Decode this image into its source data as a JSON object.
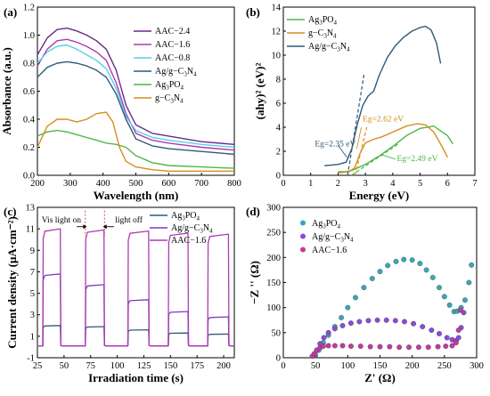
{
  "chart_data": [
    {
      "panel": "(a)",
      "type": "line",
      "xlabel": "Wavelength (nm)",
      "ylabel": "Absorbance (a.u.)",
      "xlim": [
        200,
        800
      ],
      "ylim": [
        0,
        1.2
      ],
      "xticks": [
        200,
        300,
        400,
        500,
        600,
        700,
        800
      ],
      "yticks": [
        0.0,
        0.2,
        0.4,
        0.6,
        0.8,
        1.0,
        1.2
      ],
      "legend_position": "top-right",
      "series": [
        {
          "name": "AAC−2.4",
          "color": "#6a2a8e",
          "x": [
            200,
            230,
            260,
            290,
            320,
            350,
            380,
            410,
            440,
            470,
            500,
            550,
            600,
            700,
            800
          ],
          "y": [
            0.86,
            0.98,
            1.04,
            1.05,
            1.03,
            1.0,
            0.96,
            0.9,
            0.75,
            0.5,
            0.36,
            0.3,
            0.28,
            0.24,
            0.22
          ]
        },
        {
          "name": "AAC−1.6",
          "color": "#b03ab0",
          "x": [
            200,
            230,
            260,
            290,
            320,
            350,
            380,
            410,
            440,
            470,
            500,
            550,
            600,
            700,
            800
          ],
          "y": [
            0.78,
            0.9,
            0.96,
            0.97,
            0.95,
            0.92,
            0.88,
            0.82,
            0.66,
            0.44,
            0.3,
            0.25,
            0.23,
            0.2,
            0.18
          ]
        },
        {
          "name": "AAC−0.8",
          "color": "#55d0e8",
          "x": [
            200,
            230,
            260,
            290,
            320,
            350,
            380,
            410,
            440,
            470,
            500,
            550,
            600,
            700,
            800
          ],
          "y": [
            0.8,
            0.88,
            0.92,
            0.93,
            0.9,
            0.86,
            0.82,
            0.76,
            0.62,
            0.42,
            0.32,
            0.27,
            0.25,
            0.22,
            0.2
          ]
        },
        {
          "name": "Ag/g−C3N4",
          "color": "#2f5a78",
          "x": [
            200,
            230,
            260,
            290,
            320,
            350,
            380,
            410,
            440,
            470,
            500,
            550,
            600,
            700,
            800
          ],
          "y": [
            0.7,
            0.77,
            0.8,
            0.81,
            0.8,
            0.78,
            0.75,
            0.7,
            0.58,
            0.4,
            0.26,
            0.21,
            0.19,
            0.17,
            0.15
          ]
        },
        {
          "name": "Ag3PO4",
          "color": "#4ab84a",
          "x": [
            200,
            230,
            260,
            290,
            320,
            350,
            380,
            410,
            440,
            470,
            500,
            550,
            600,
            700,
            800
          ],
          "y": [
            0.28,
            0.31,
            0.32,
            0.31,
            0.29,
            0.27,
            0.25,
            0.23,
            0.22,
            0.2,
            0.14,
            0.09,
            0.07,
            0.06,
            0.05
          ]
        },
        {
          "name": "g−C3N4",
          "color": "#d98c1e",
          "x": [
            200,
            230,
            260,
            290,
            320,
            350,
            380,
            410,
            430,
            450,
            470,
            500,
            550,
            600,
            700,
            800
          ],
          "y": [
            0.2,
            0.35,
            0.4,
            0.4,
            0.38,
            0.4,
            0.44,
            0.45,
            0.38,
            0.2,
            0.1,
            0.06,
            0.04,
            0.03,
            0.03,
            0.03
          ]
        }
      ]
    },
    {
      "panel": "(b)",
      "type": "line",
      "xlabel": "Energy (eV)",
      "ylabel": "(ahy)² (eV)²",
      "xlim": [
        0,
        7
      ],
      "ylim": [
        0,
        14
      ],
      "xticks": [
        0,
        1,
        2,
        3,
        4,
        5,
        6,
        7
      ],
      "yticks": [
        0,
        2,
        4,
        6,
        8,
        10,
        12,
        14
      ],
      "legend_position": "top-left",
      "series": [
        {
          "name": "Ag3PO4",
          "color": "#4ab84a",
          "x": [
            2.0,
            2.3,
            2.5,
            2.7,
            3.0,
            3.5,
            4.0,
            4.5,
            5.0,
            5.5,
            6.0,
            6.2
          ],
          "y": [
            0.3,
            0.3,
            0.4,
            0.6,
            0.9,
            1.6,
            2.4,
            3.3,
            3.9,
            4.1,
            3.3,
            2.6
          ]
        },
        {
          "name": "g−C3N4",
          "color": "#d98c1e",
          "x": [
            2.0,
            2.4,
            2.6,
            2.8,
            3.0,
            3.3,
            3.6,
            4.0,
            4.5,
            4.9,
            5.2,
            5.5,
            5.8,
            6.0
          ],
          "y": [
            0.2,
            0.3,
            0.6,
            1.8,
            2.7,
            3.0,
            3.2,
            3.6,
            4.1,
            4.3,
            4.2,
            3.6,
            2.4,
            1.5
          ]
        },
        {
          "name": "Ag/g−C3N4",
          "color": "#2f5a78",
          "x": [
            1.5,
            2.0,
            2.3,
            2.5,
            2.7,
            2.9,
            3.1,
            3.3,
            3.5,
            3.8,
            4.1,
            4.4,
            4.7,
            5.0,
            5.2,
            5.4,
            5.6,
            5.75
          ],
          "y": [
            0.8,
            0.9,
            1.1,
            2.2,
            4.2,
            5.8,
            6.6,
            7.0,
            8.3,
            9.8,
            10.8,
            11.5,
            12.0,
            12.3,
            12.4,
            12.1,
            11.0,
            9.3
          ]
        }
      ],
      "annotations": [
        {
          "text": "Eg=2.62 eV",
          "color": "#d98c1e"
        },
        {
          "text": "Eg=2.35 eV",
          "color": "#2f5a78"
        },
        {
          "text": "Eg=2.49 eV",
          "color": "#4ab84a"
        }
      ]
    },
    {
      "panel": "(c)",
      "type": "line",
      "xlabel": "Irradiation time (s)",
      "ylabel": "Current density (μA·cm⁻²)",
      "xlim": [
        25,
        210
      ],
      "ylim": [
        -1,
        13
      ],
      "xticks": [
        25,
        50,
        75,
        100,
        125,
        150,
        175,
        200
      ],
      "yticks": [
        -1,
        1,
        3,
        5,
        7,
        9,
        11,
        13
      ],
      "legend_position": "top-right",
      "on_intervals": [
        [
          30,
          47
        ],
        [
          70,
          88
        ],
        [
          110,
          130
        ],
        [
          148,
          167
        ],
        [
          185,
          205
        ]
      ],
      "annotations": [
        {
          "text": "Vis light on"
        },
        {
          "text": "light off"
        }
      ],
      "series": [
        {
          "name": "Ag3PO4",
          "color": "#2f5a78",
          "on_values": [
            2.0,
            1.9,
            1.6,
            1.3,
            1.2
          ]
        },
        {
          "name": "Ag/g−C3N4",
          "color": "#7a3cc0",
          "on_values": [
            6.8,
            5.8,
            4.4,
            3.3,
            2.8
          ]
        },
        {
          "name": "AAC−1.6",
          "color": "#b03ab0",
          "on_values": [
            11.0,
            10.9,
            10.8,
            10.6,
            10.5
          ]
        }
      ]
    },
    {
      "panel": "(d)",
      "type": "scatter",
      "xlabel": "Z' (Ω)",
      "ylabel": "−Z '' (Ω)",
      "xlim": [
        0,
        300
      ],
      "ylim": [
        0,
        300
      ],
      "xticks": [
        0,
        50,
        100,
        150,
        200,
        250,
        300
      ],
      "yticks": [
        0,
        50,
        100,
        150,
        200,
        250,
        300
      ],
      "legend_position": "top-left",
      "series": [
        {
          "name": "Ag3PO4",
          "color": "#38a7b5",
          "x": [
            50,
            55,
            62,
            70,
            80,
            90,
            100,
            112,
            125,
            138,
            150,
            162,
            175,
            187,
            200,
            212,
            222,
            232,
            242,
            250,
            258,
            265,
            270,
            276,
            282,
            288,
            292
          ],
          "y": [
            5,
            15,
            30,
            45,
            62,
            80,
            100,
            120,
            140,
            158,
            172,
            184,
            192,
            196,
            195,
            188,
            175,
            160,
            140,
            122,
            105,
            92,
            93,
            100,
            115,
            150,
            185
          ]
        },
        {
          "name": "Ag/g−C3N4",
          "color": "#8a4ad8",
          "x": [
            48,
            52,
            57,
            63,
            70,
            80,
            92,
            105,
            118,
            132,
            146,
            160,
            174,
            188,
            202,
            216,
            230,
            242,
            254,
            262,
            268,
            272,
            276,
            280
          ],
          "y": [
            5,
            15,
            28,
            40,
            50,
            58,
            64,
            69,
            72,
            74,
            75,
            75,
            74,
            72,
            68,
            62,
            55,
            48,
            40,
            36,
            34,
            40,
            60,
            90
          ]
        },
        {
          "name": "AAC−1.6",
          "color": "#c03aa0",
          "x": [
            45,
            48,
            52,
            57,
            62,
            70,
            80,
            92,
            105,
            120,
            135,
            150,
            165,
            180,
            195,
            210,
            225,
            240,
            252,
            262,
            268,
            272,
            275
          ],
          "y": [
            3,
            8,
            15,
            20,
            23,
            24,
            24,
            24,
            23,
            23,
            22,
            22,
            22,
            21,
            21,
            21,
            21,
            22,
            23,
            24,
            30,
            55,
            95
          ]
        }
      ]
    }
  ],
  "legend_text": {
    "a": [
      {
        "base": "AAC−2.4"
      },
      {
        "base": "AAC−1.6"
      },
      {
        "base": "AAC−0.8"
      },
      {
        "base": "Ag/g−C",
        "sub1": "3",
        "mid": "N",
        "sub2": "4"
      },
      {
        "base": "Ag",
        "sub1": "3",
        "mid": "PO",
        "sub2": "4"
      },
      {
        "base": "g−C",
        "sub1": "3",
        "mid": "N",
        "sub2": "4"
      }
    ],
    "b": [
      {
        "base": "Ag",
        "sub1": "3",
        "mid": "PO",
        "sub2": "4"
      },
      {
        "base": "g−C",
        "sub1": "3",
        "mid": "N",
        "sub2": "4"
      },
      {
        "base": "Ag/g−C",
        "sub1": "3",
        "mid": "N",
        "sub2": "4"
      }
    ],
    "c": [
      {
        "base": "Ag",
        "sub1": "3",
        "mid": "PO",
        "sub2": "4"
      },
      {
        "base": "Ag/g−C",
        "sub1": "3",
        "mid": "N",
        "sub2": "4"
      },
      {
        "base": "AAC−1.6"
      }
    ],
    "d": [
      {
        "base": "Ag",
        "sub1": "3",
        "mid": "PO",
        "sub2": "4"
      },
      {
        "base": "Ag/g−C",
        "sub1": "3",
        "mid": "N",
        "sub2": "4"
      },
      {
        "base": "AAC−1.6"
      }
    ]
  }
}
